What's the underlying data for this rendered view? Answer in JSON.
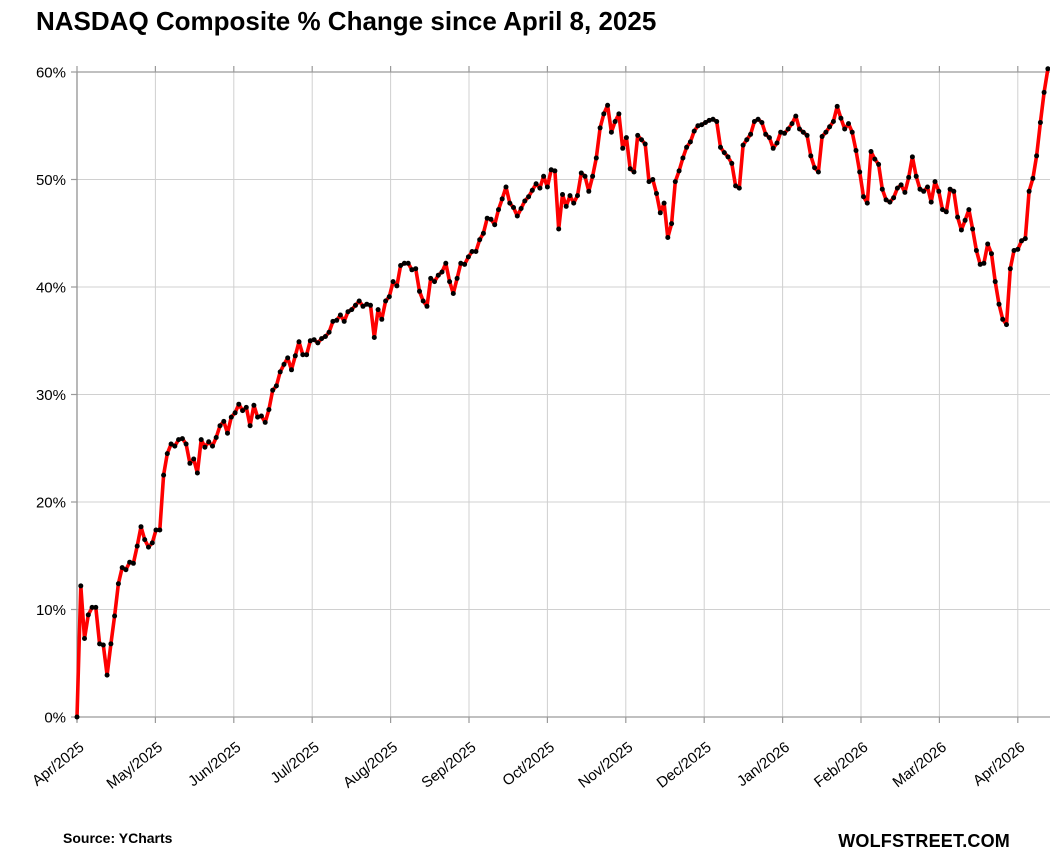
{
  "page": {
    "title": "NASDAQ Composite % Change since April 8, 2025",
    "source_note": "Source: YCharts",
    "branding": "WOLFSTREET.COM"
  },
  "colors": {
    "background": "#ffffff",
    "line": "#fe0000",
    "marker": "#000000",
    "gridline": "#d0d0d0",
    "axis": "#9a9a9a",
    "text": "#000000"
  },
  "chart_data": {
    "type": "line",
    "title": "NASDAQ Composite % Change since April 8, 2025",
    "series_name": "NASDAQ Composite cumulative % change since April 8, 2025",
    "unit": "percent",
    "ylim": [
      0,
      60
    ],
    "y_ticks": [
      0,
      10,
      20,
      30,
      40,
      50,
      60
    ],
    "y_tick_labels": [
      "0%",
      "10%",
      "20%",
      "30%",
      "40%",
      "50%",
      "60%"
    ],
    "x_tick_labels": [
      "Apr/2025",
      "May/2025",
      "Jun/2025",
      "Jul/2025",
      "Aug/2025",
      "Sep/2025",
      "Oct/2025",
      "Nov/2025",
      "Dec/2025",
      "Jan/2026",
      "Feb/2026",
      "Mar/2026",
      "Apr/2026"
    ],
    "grid": true,
    "legend_position": "none",
    "line_color": "#fe0000",
    "marker_color": "#000000",
    "dates": [
      "2025-04-08",
      "2025-04-09",
      "2025-04-10",
      "2025-04-11",
      "2025-04-14",
      "2025-04-15",
      "2025-04-16",
      "2025-04-17",
      "2025-04-21",
      "2025-04-22",
      "2025-04-23",
      "2025-04-24",
      "2025-04-25",
      "2025-04-28",
      "2025-04-29",
      "2025-04-30",
      "2025-05-01",
      "2025-05-02",
      "2025-05-05",
      "2025-05-06",
      "2025-05-07",
      "2025-05-08",
      "2025-05-09",
      "2025-05-12",
      "2025-05-13",
      "2025-05-14",
      "2025-05-15",
      "2025-05-16",
      "2025-05-19",
      "2025-05-20",
      "2025-05-21",
      "2025-05-22",
      "2025-05-23",
      "2025-05-27",
      "2025-05-28",
      "2025-05-29",
      "2025-05-30",
      "2025-06-02",
      "2025-06-03",
      "2025-06-04",
      "2025-06-05",
      "2025-06-06",
      "2025-06-09",
      "2025-06-10",
      "2025-06-11",
      "2025-06-12",
      "2025-06-13",
      "2025-06-16",
      "2025-06-17",
      "2025-06-18",
      "2025-06-20",
      "2025-06-23",
      "2025-06-24",
      "2025-06-25",
      "2025-06-26",
      "2025-06-27",
      "2025-06-30",
      "2025-07-01",
      "2025-07-02",
      "2025-07-03",
      "2025-07-07",
      "2025-07-08",
      "2025-07-09",
      "2025-07-10",
      "2025-07-11",
      "2025-07-14",
      "2025-07-15",
      "2025-07-16",
      "2025-07-17",
      "2025-07-18",
      "2025-07-21",
      "2025-07-22",
      "2025-07-23",
      "2025-07-24",
      "2025-07-25",
      "2025-07-28",
      "2025-07-29",
      "2025-07-30",
      "2025-07-31",
      "2025-08-01",
      "2025-08-04",
      "2025-08-05",
      "2025-08-06",
      "2025-08-07",
      "2025-08-08",
      "2025-08-11",
      "2025-08-12",
      "2025-08-13",
      "2025-08-14",
      "2025-08-15",
      "2025-08-18",
      "2025-08-19",
      "2025-08-20",
      "2025-08-21",
      "2025-08-22",
      "2025-08-25",
      "2025-08-26",
      "2025-08-27",
      "2025-08-28",
      "2025-08-29",
      "2025-09-02",
      "2025-09-03",
      "2025-09-04",
      "2025-09-05",
      "2025-09-08",
      "2025-09-09",
      "2025-09-10",
      "2025-09-11",
      "2025-09-12",
      "2025-09-15",
      "2025-09-16",
      "2025-09-17",
      "2025-09-18",
      "2025-09-19",
      "2025-09-22",
      "2025-09-23",
      "2025-09-24",
      "2025-09-25",
      "2025-09-26",
      "2025-09-29",
      "2025-09-30",
      "2025-10-01",
      "2025-10-02",
      "2025-10-03",
      "2025-10-06",
      "2025-10-07",
      "2025-10-08",
      "2025-10-09",
      "2025-10-10",
      "2025-10-13",
      "2025-10-14",
      "2025-10-15",
      "2025-10-16",
      "2025-10-17",
      "2025-10-20",
      "2025-10-21",
      "2025-10-22",
      "2025-10-23",
      "2025-10-24",
      "2025-10-27",
      "2025-10-28",
      "2025-10-29",
      "2025-10-30",
      "2025-10-31",
      "2025-11-03",
      "2025-11-04",
      "2025-11-05",
      "2025-11-06",
      "2025-11-07",
      "2025-11-10",
      "2025-11-11",
      "2025-11-12",
      "2025-11-13",
      "2025-11-14",
      "2025-11-17",
      "2025-11-18",
      "2025-11-19",
      "2025-11-20",
      "2025-11-21",
      "2025-11-24",
      "2025-11-25",
      "2025-11-26",
      "2025-11-28",
      "2025-12-01",
      "2025-12-02",
      "2025-12-03",
      "2025-12-04",
      "2025-12-05",
      "2025-12-08",
      "2025-12-09",
      "2025-12-10",
      "2025-12-11",
      "2025-12-12",
      "2025-12-15",
      "2025-12-16",
      "2025-12-17",
      "2025-12-18",
      "2025-12-19",
      "2025-12-22",
      "2025-12-23",
      "2025-12-24",
      "2025-12-26",
      "2025-12-29",
      "2025-12-30",
      "2025-12-31",
      "2026-01-02",
      "2026-01-05",
      "2026-01-06",
      "2026-01-07",
      "2026-01-08",
      "2026-01-09",
      "2026-01-12",
      "2026-01-13",
      "2026-01-14",
      "2026-01-15",
      "2026-01-16",
      "2026-01-20",
      "2026-01-21",
      "2026-01-22",
      "2026-01-23",
      "2026-01-26",
      "2026-01-27",
      "2026-01-28",
      "2026-01-29",
      "2026-01-30",
      "2026-02-02",
      "2026-02-03",
      "2026-02-04",
      "2026-02-05",
      "2026-02-06",
      "2026-02-09",
      "2026-02-10",
      "2026-02-11",
      "2026-02-12",
      "2026-02-13",
      "2026-02-17",
      "2026-02-18",
      "2026-02-19",
      "2026-02-20",
      "2026-02-23",
      "2026-02-24",
      "2026-02-25",
      "2026-02-26",
      "2026-02-27",
      "2026-03-02",
      "2026-03-03",
      "2026-03-04",
      "2026-03-05",
      "2026-03-06",
      "2026-03-09",
      "2026-03-10",
      "2026-03-11",
      "2026-03-12",
      "2026-03-13",
      "2026-03-16",
      "2026-03-17",
      "2026-03-18",
      "2026-03-19",
      "2026-03-20",
      "2026-03-23",
      "2026-03-24",
      "2026-03-25",
      "2026-03-26",
      "2026-03-27",
      "2026-03-30",
      "2026-03-31",
      "2026-04-01",
      "2026-04-02",
      "2026-04-06",
      "2026-04-07",
      "2026-04-08",
      "2026-04-09",
      "2026-04-10",
      "2026-04-13",
      "2026-04-14",
      "2026-04-15",
      "2026-04-16"
    ],
    "values": [
      0.0,
      12.2,
      7.3,
      9.5,
      10.2,
      10.2,
      6.8,
      6.7,
      3.9,
      6.8,
      9.4,
      12.4,
      13.9,
      13.7,
      14.4,
      14.3,
      15.9,
      17.7,
      16.5,
      15.8,
      16.2,
      17.4,
      17.4,
      22.5,
      24.5,
      25.4,
      25.2,
      25.8,
      25.9,
      25.4,
      23.6,
      24.0,
      22.7,
      25.8,
      25.1,
      25.6,
      25.2,
      26.0,
      27.1,
      27.5,
      26.4,
      27.9,
      28.3,
      29.1,
      28.5,
      28.8,
      27.1,
      29.0,
      27.9,
      28.0,
      27.4,
      28.6,
      30.4,
      30.8,
      32.1,
      32.8,
      33.4,
      32.3,
      33.6,
      34.9,
      33.7,
      33.7,
      35.0,
      35.1,
      34.8,
      35.2,
      35.4,
      35.8,
      36.8,
      36.9,
      37.4,
      36.8,
      37.7,
      37.9,
      38.3,
      38.7,
      38.2,
      38.4,
      38.3,
      35.3,
      37.9,
      37.0,
      38.7,
      39.1,
      40.5,
      40.1,
      42.0,
      42.2,
      42.2,
      41.6,
      41.7,
      39.6,
      38.7,
      38.2,
      40.8,
      40.5,
      41.1,
      41.4,
      42.2,
      40.5,
      39.4,
      40.8,
      42.2,
      42.1,
      42.8,
      43.3,
      43.3,
      44.4,
      45.0,
      46.4,
      46.3,
      45.8,
      47.2,
      48.2,
      49.3,
      47.8,
      47.4,
      46.6,
      47.3,
      48.0,
      48.4,
      49.0,
      49.6,
      49.2,
      50.3,
      49.3,
      50.9,
      50.8,
      45.4,
      48.6,
      47.5,
      48.5,
      47.8,
      48.5,
      50.6,
      50.3,
      48.9,
      50.3,
      52.0,
      54.8,
      56.1,
      56.9,
      54.4,
      55.4,
      56.1,
      52.9,
      53.9,
      51.0,
      50.7,
      54.1,
      53.7,
      53.3,
      49.8,
      50.0,
      48.7,
      46.9,
      47.8,
      44.6,
      45.9,
      49.8,
      50.8,
      52.0,
      53.0,
      53.5,
      54.5,
      55.0,
      55.1,
      55.3,
      55.5,
      55.6,
      55.4,
      53.0,
      52.5,
      52.1,
      51.5,
      49.4,
      49.2,
      53.2,
      53.7,
      54.2,
      55.4,
      55.6,
      55.3,
      54.2,
      53.9,
      52.9,
      53.4,
      54.4,
      54.3,
      54.7,
      55.2,
      55.9,
      54.7,
      54.4,
      54.1,
      52.2,
      51.1,
      50.7,
      54.0,
      54.4,
      54.9,
      55.4,
      56.8,
      55.7,
      54.7,
      55.2,
      54.4,
      52.7,
      50.7,
      48.4,
      47.8,
      52.6,
      51.9,
      51.4,
      49.1,
      48.1,
      47.9,
      48.3,
      49.2,
      49.5,
      48.8,
      50.2,
      52.1,
      50.3,
      49.1,
      48.9,
      49.3,
      47.9,
      49.8,
      48.9,
      47.2,
      47.0,
      49.1,
      48.9,
      46.5,
      45.3,
      46.2,
      47.2,
      45.4,
      43.4,
      42.1,
      42.2,
      44.0,
      43.1,
      40.5,
      38.4,
      37.0,
      36.5,
      41.7,
      43.4,
      43.5,
      44.3,
      44.5,
      48.9,
      50.1,
      52.2,
      55.3,
      58.1,
      60.3
    ]
  }
}
